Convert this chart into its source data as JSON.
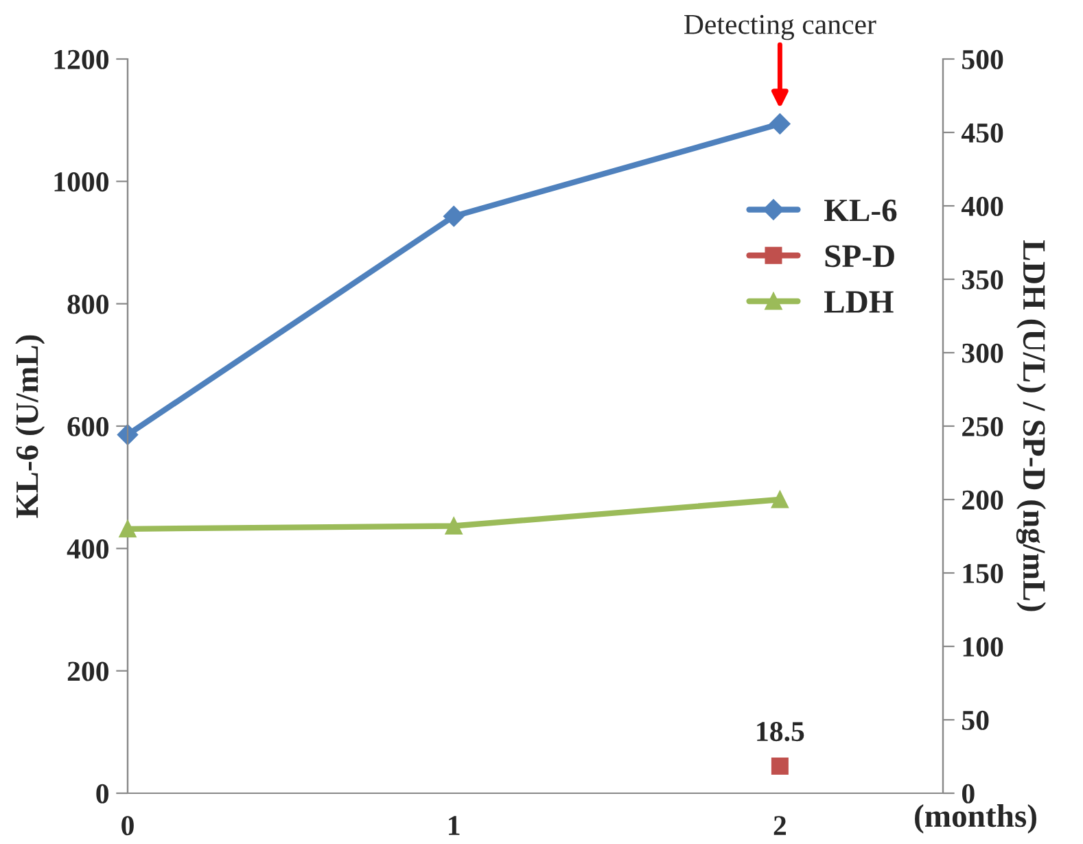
{
  "chart_data": {
    "type": "line",
    "xlabel": "(months)",
    "ylabel": "KL-6 (U/mL)",
    "y2label": "LDH (U/L) / SP-D (ng/mL)",
    "x": [
      0,
      1,
      2
    ],
    "series": [
      {
        "name": "KL-6",
        "color": "#4f81bd",
        "values": [
          586,
          943,
          1094
        ],
        "marker": "diamond"
      },
      {
        "name": "SP-D",
        "color": "#c0504d",
        "values": [
          null,
          null,
          18.5
        ],
        "marker": "square",
        "axis": "y2",
        "value_labels": [
          null,
          null,
          "18.5"
        ]
      },
      {
        "name": "LDH",
        "color": "#9bbb59",
        "values": [
          180,
          182,
          200
        ],
        "marker": "triangle",
        "axis": "y2"
      }
    ],
    "xlim": [
      0,
      2.5
    ],
    "xticks": [
      0,
      1,
      2
    ],
    "ylim": [
      0,
      1200
    ],
    "yticks": [
      0,
      200,
      400,
      600,
      800,
      1000,
      1200
    ],
    "y2lim": [
      0,
      500
    ],
    "y2ticks": [
      0,
      50,
      100,
      150,
      200,
      250,
      300,
      350,
      400,
      450,
      500
    ],
    "annotations": [
      {
        "text": "Detecting cancer",
        "x": 2,
        "y": 1094
      }
    ],
    "legend": "top right",
    "grid": false,
    "line_style": "solid"
  }
}
